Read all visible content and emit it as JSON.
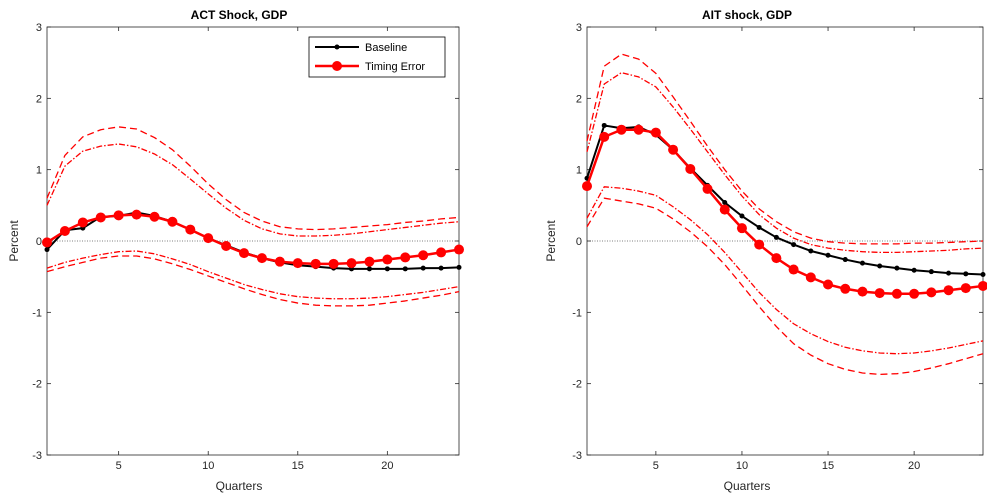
{
  "chart_data": [
    {
      "type": "line",
      "title": "ACT Shock, GDP",
      "xlabel": "Quarters",
      "ylabel": "Percent",
      "xlim": [
        1,
        24
      ],
      "ylim": [
        -3,
        3
      ],
      "xticks": [
        5,
        10,
        15,
        20
      ],
      "yticks": [
        -3,
        -2,
        -1,
        0,
        1,
        2,
        3
      ],
      "zero_line": true,
      "legend": {
        "position": "top-right",
        "entries": [
          "Baseline",
          "Timing Error"
        ]
      },
      "x": [
        1,
        2,
        3,
        4,
        5,
        6,
        7,
        8,
        9,
        10,
        11,
        12,
        13,
        14,
        15,
        16,
        17,
        18,
        19,
        20,
        21,
        22,
        23,
        24
      ],
      "series": [
        {
          "name": "Baseline",
          "style": "solid-dot",
          "color": "#000000",
          "values": [
            -0.12,
            0.15,
            0.18,
            0.34,
            0.35,
            0.4,
            0.35,
            0.27,
            0.16,
            0.04,
            -0.06,
            -0.16,
            -0.24,
            -0.3,
            -0.34,
            -0.36,
            -0.38,
            -0.39,
            -0.39,
            -0.39,
            -0.39,
            -0.38,
            -0.38,
            -0.37
          ]
        },
        {
          "name": "Timing Error",
          "style": "solid-circle",
          "color": "#ff0000",
          "values": [
            -0.02,
            0.14,
            0.26,
            0.33,
            0.36,
            0.37,
            0.34,
            0.27,
            0.16,
            0.04,
            -0.07,
            -0.17,
            -0.24,
            -0.29,
            -0.31,
            -0.32,
            -0.32,
            -0.31,
            -0.29,
            -0.26,
            -0.23,
            -0.2,
            -0.16,
            -0.12
          ]
        },
        {
          "style": "dashed",
          "color": "#ff0000",
          "values": [
            0.6,
            1.2,
            1.46,
            1.56,
            1.6,
            1.57,
            1.45,
            1.28,
            1.05,
            0.8,
            0.58,
            0.4,
            0.28,
            0.2,
            0.17,
            0.16,
            0.17,
            0.19,
            0.21,
            0.23,
            0.26,
            0.28,
            0.31,
            0.33
          ]
        },
        {
          "style": "dashdot",
          "color": "#ff0000",
          "values": [
            0.5,
            1.05,
            1.26,
            1.33,
            1.36,
            1.32,
            1.22,
            1.07,
            0.87,
            0.66,
            0.46,
            0.29,
            0.17,
            0.1,
            0.07,
            0.07,
            0.08,
            0.1,
            0.13,
            0.16,
            0.19,
            0.22,
            0.25,
            0.27
          ]
        },
        {
          "style": "dashdot",
          "color": "#ff0000",
          "values": [
            -0.38,
            -0.3,
            -0.24,
            -0.19,
            -0.15,
            -0.14,
            -0.18,
            -0.25,
            -0.33,
            -0.43,
            -0.52,
            -0.61,
            -0.68,
            -0.74,
            -0.78,
            -0.8,
            -0.81,
            -0.81,
            -0.8,
            -0.78,
            -0.75,
            -0.72,
            -0.68,
            -0.64
          ]
        },
        {
          "style": "dashed",
          "color": "#ff0000",
          "values": [
            -0.43,
            -0.36,
            -0.3,
            -0.24,
            -0.21,
            -0.21,
            -0.25,
            -0.32,
            -0.4,
            -0.49,
            -0.58,
            -0.67,
            -0.75,
            -0.82,
            -0.87,
            -0.9,
            -0.91,
            -0.91,
            -0.9,
            -0.87,
            -0.84,
            -0.8,
            -0.76,
            -0.71
          ]
        }
      ]
    },
    {
      "type": "line",
      "title": "AIT shock, GDP",
      "xlabel": "Quarters",
      "ylabel": "Percent",
      "xlim": [
        1,
        24
      ],
      "ylim": [
        -3,
        3
      ],
      "xticks": [
        5,
        10,
        15,
        20
      ],
      "yticks": [
        -3,
        -2,
        -1,
        0,
        1,
        2,
        3
      ],
      "zero_line": true,
      "x": [
        1,
        2,
        3,
        4,
        5,
        6,
        7,
        8,
        9,
        10,
        11,
        12,
        13,
        14,
        15,
        16,
        17,
        18,
        19,
        20,
        21,
        22,
        23,
        24
      ],
      "series": [
        {
          "name": "Baseline",
          "style": "solid-dot",
          "color": "#000000",
          "values": [
            0.88,
            1.62,
            1.58,
            1.6,
            1.49,
            1.28,
            1.02,
            0.78,
            0.54,
            0.35,
            0.19,
            0.05,
            -0.05,
            -0.14,
            -0.2,
            -0.26,
            -0.31,
            -0.35,
            -0.38,
            -0.41,
            -0.43,
            -0.45,
            -0.46,
            -0.47
          ]
        },
        {
          "name": "Timing Error",
          "style": "solid-circle",
          "color": "#ff0000",
          "values": [
            0.77,
            1.46,
            1.56,
            1.56,
            1.52,
            1.28,
            1.01,
            0.73,
            0.44,
            0.18,
            -0.05,
            -0.24,
            -0.4,
            -0.51,
            -0.61,
            -0.67,
            -0.71,
            -0.73,
            -0.74,
            -0.74,
            -0.72,
            -0.69,
            -0.66,
            -0.63
          ]
        },
        {
          "style": "dashed",
          "color": "#ff0000",
          "values": [
            1.4,
            2.45,
            2.62,
            2.55,
            2.35,
            2.02,
            1.68,
            1.33,
            1.0,
            0.7,
            0.45,
            0.27,
            0.13,
            0.04,
            -0.01,
            -0.03,
            -0.04,
            -0.04,
            -0.04,
            -0.03,
            -0.03,
            -0.02,
            -0.01,
            0.0
          ]
        },
        {
          "style": "dashdot",
          "color": "#ff0000",
          "values": [
            1.25,
            2.2,
            2.36,
            2.3,
            2.16,
            1.88,
            1.57,
            1.25,
            0.93,
            0.63,
            0.37,
            0.18,
            0.04,
            -0.05,
            -0.1,
            -0.13,
            -0.15,
            -0.16,
            -0.16,
            -0.15,
            -0.14,
            -0.13,
            -0.11,
            -0.1
          ]
        },
        {
          "style": "dashdot",
          "color": "#ff0000",
          "values": [
            0.32,
            0.76,
            0.74,
            0.7,
            0.64,
            0.48,
            0.3,
            0.09,
            -0.16,
            -0.44,
            -0.72,
            -0.96,
            -1.16,
            -1.3,
            -1.41,
            -1.49,
            -1.54,
            -1.57,
            -1.58,
            -1.57,
            -1.54,
            -1.5,
            -1.45,
            -1.4
          ]
        },
        {
          "style": "dashed",
          "color": "#ff0000",
          "values": [
            0.2,
            0.6,
            0.56,
            0.52,
            0.46,
            0.31,
            0.13,
            -0.08,
            -0.33,
            -0.62,
            -0.92,
            -1.2,
            -1.44,
            -1.6,
            -1.72,
            -1.8,
            -1.85,
            -1.87,
            -1.86,
            -1.83,
            -1.78,
            -1.72,
            -1.65,
            -1.58
          ]
        }
      ]
    }
  ]
}
